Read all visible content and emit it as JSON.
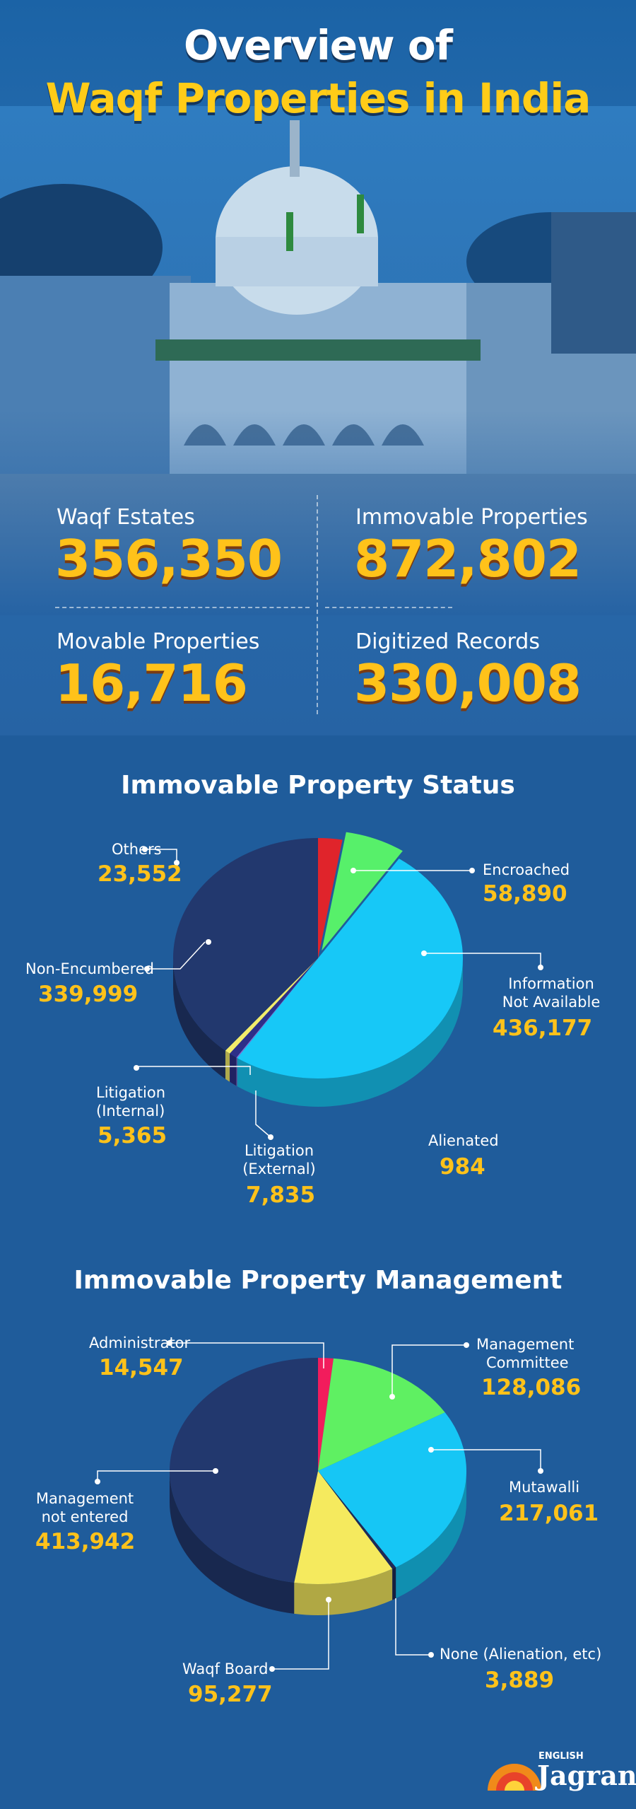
{
  "header": {
    "title_line1": "Overview of",
    "title_line2": "Waqf Properties in India"
  },
  "stats": {
    "waqf_estates": {
      "label": "Waqf Estates",
      "value": "356,350"
    },
    "immovable": {
      "label": "Immovable Properties",
      "value": "872,802"
    },
    "movable": {
      "label": "Movable Properties",
      "value": "16,716"
    },
    "digitized": {
      "label": "Digitized Records",
      "value": "330,008"
    }
  },
  "chart_data": [
    {
      "type": "pie",
      "title": "Immovable Property Status",
      "slices": [
        {
          "label": "Others",
          "value": 23552,
          "display": "23,552",
          "color": "#e0242b"
        },
        {
          "label": "Encroached",
          "value": 58890,
          "display": "58,890",
          "color": "#57f06a"
        },
        {
          "label": "Information Not Available",
          "value": 436177,
          "display": "436,177",
          "color": "#17c8f7"
        },
        {
          "label": "Alienated",
          "value": 984,
          "display": "984",
          "color": "#8d6ad1"
        },
        {
          "label": "Litigation (External)",
          "value": 7835,
          "display": "7,835",
          "color": "#2d2f88"
        },
        {
          "label": "Litigation (Internal)",
          "value": 5365,
          "display": "5,365",
          "color": "#f3ec6a"
        },
        {
          "label": "Non-Encumbered",
          "value": 339999,
          "display": "339,999",
          "color": "#22386e"
        }
      ],
      "labels": {
        "others": "Others",
        "encroached": "Encroached",
        "info_line1": "Information",
        "info_line2": "Not Available",
        "alienated": "Alienated",
        "lit_ext_line1": "Litigation",
        "lit_ext_line2": "(External)",
        "lit_int_line1": "Litigation",
        "lit_int_line2": "(Internal)",
        "non_enc": "Non-Encumbered"
      }
    },
    {
      "type": "pie",
      "title": "Immovable Property Management",
      "slices": [
        {
          "label": "Administrator",
          "value": 14547,
          "display": "14,547",
          "color": "#f21c5c"
        },
        {
          "label": "Management Committee",
          "value": 128086,
          "display": "128,086",
          "color": "#5ff062"
        },
        {
          "label": "Mutawalli",
          "value": 217061,
          "display": "217,061",
          "color": "#16c6f5"
        },
        {
          "label": "None (Alienation, etc)",
          "value": 3889,
          "display": "3,889",
          "color": "#1e2a56"
        },
        {
          "label": "Waqf Board",
          "value": 95277,
          "display": "95,277",
          "color": "#f5ea5e"
        },
        {
          "label": "Management not entered",
          "value": 413942,
          "display": "413,942",
          "color": "#22386e"
        }
      ],
      "labels": {
        "admin": "Administrator",
        "mgmt_line1": "Management",
        "mgmt_line2": "Committee",
        "mutawalli": "Mutawalli",
        "none": "None (Alienation, etc)",
        "waqf_board": "Waqf Board",
        "not_entered_line1": "Management",
        "not_entered_line2": "not entered"
      }
    }
  ],
  "brand": {
    "small": "ENGLISH",
    "big": "Jagran"
  }
}
